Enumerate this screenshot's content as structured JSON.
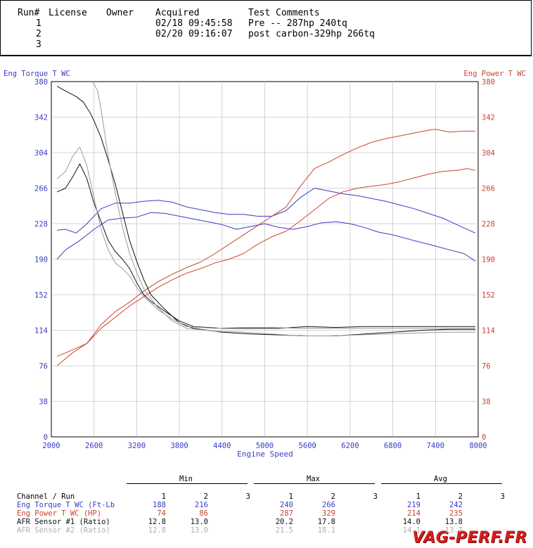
{
  "header": {
    "col_run": "Run#",
    "col_license": "License",
    "col_owner": "Owner",
    "col_acquired": "Acquired",
    "col_comments": "Test Comments",
    "runs": [
      {
        "num": "1",
        "acquired": "02/18 09:45:58",
        "comment": "Pre -- 287hp 240tq"
      },
      {
        "num": "2",
        "acquired": "02/20 09:16:07",
        "comment": "post carbon-329hp 266tq"
      },
      {
        "num": "3",
        "acquired": "",
        "comment": ""
      }
    ]
  },
  "chart_data": {
    "type": "line",
    "xlabel": "Engine Speed",
    "left_axis_label": "Eng Torque T WC",
    "right_axis_label": "Eng Power T WC",
    "xlim": [
      2000,
      8000
    ],
    "ylim": [
      0,
      380
    ],
    "x_ticks": [
      2000,
      2600,
      3200,
      3800,
      4400,
      5000,
      5600,
      6200,
      6800,
      7400,
      8000
    ],
    "y_ticks": [
      0,
      38,
      76,
      114,
      152,
      190,
      228,
      266,
      304,
      342,
      380
    ],
    "colors": {
      "torque": "#3b3bc4",
      "power": "#c8452f",
      "afr1": "#111111",
      "afr2": "#9a9a9a"
    },
    "series": [
      {
        "name": "Eng Torque T WC run 1",
        "axis": "left",
        "color": "#3b3bc4",
        "points": [
          [
            2080,
            190
          ],
          [
            2200,
            200
          ],
          [
            2400,
            210
          ],
          [
            2600,
            222
          ],
          [
            2800,
            232
          ],
          [
            3000,
            234
          ],
          [
            3200,
            235
          ],
          [
            3400,
            240
          ],
          [
            3600,
            239
          ],
          [
            3800,
            236
          ],
          [
            4000,
            233
          ],
          [
            4200,
            230
          ],
          [
            4400,
            227
          ],
          [
            4600,
            222
          ],
          [
            4800,
            225
          ],
          [
            5000,
            228
          ],
          [
            5200,
            224
          ],
          [
            5400,
            222
          ],
          [
            5600,
            225
          ],
          [
            5800,
            229
          ],
          [
            6000,
            230
          ],
          [
            6200,
            228
          ],
          [
            6400,
            224
          ],
          [
            6600,
            219
          ],
          [
            6800,
            216
          ],
          [
            7000,
            212
          ],
          [
            7200,
            208
          ],
          [
            7400,
            204
          ],
          [
            7600,
            200
          ],
          [
            7800,
            196
          ],
          [
            7960,
            188
          ]
        ]
      },
      {
        "name": "Eng Torque T WC run 2",
        "axis": "left",
        "color": "#3b3bc4",
        "points": [
          [
            2080,
            221
          ],
          [
            2200,
            222
          ],
          [
            2350,
            218
          ],
          [
            2500,
            228
          ],
          [
            2700,
            244
          ],
          [
            2900,
            250
          ],
          [
            3100,
            250
          ],
          [
            3300,
            252
          ],
          [
            3500,
            253
          ],
          [
            3700,
            251
          ],
          [
            3900,
            246
          ],
          [
            4100,
            243
          ],
          [
            4300,
            240
          ],
          [
            4500,
            238
          ],
          [
            4700,
            238
          ],
          [
            4900,
            236
          ],
          [
            5100,
            236
          ],
          [
            5300,
            242
          ],
          [
            5500,
            256
          ],
          [
            5700,
            266
          ],
          [
            5900,
            263
          ],
          [
            6100,
            260
          ],
          [
            6300,
            258
          ],
          [
            6500,
            255
          ],
          [
            6700,
            252
          ],
          [
            6900,
            248
          ],
          [
            7100,
            244
          ],
          [
            7300,
            239
          ],
          [
            7500,
            234
          ],
          [
            7700,
            227
          ],
          [
            7960,
            218
          ]
        ]
      },
      {
        "name": "Eng Power T WC run 1",
        "axis": "right",
        "color": "#c8452f",
        "points": [
          [
            2080,
            76
          ],
          [
            2300,
            90
          ],
          [
            2500,
            100
          ],
          [
            2700,
            116
          ],
          [
            2900,
            128
          ],
          [
            3100,
            140
          ],
          [
            3300,
            150
          ],
          [
            3500,
            160
          ],
          [
            3700,
            168
          ],
          [
            3900,
            175
          ],
          [
            4100,
            180
          ],
          [
            4300,
            186
          ],
          [
            4500,
            190
          ],
          [
            4700,
            196
          ],
          [
            4900,
            206
          ],
          [
            5100,
            214
          ],
          [
            5300,
            220
          ],
          [
            5500,
            231
          ],
          [
            5700,
            243
          ],
          [
            5900,
            255
          ],
          [
            6100,
            262
          ],
          [
            6300,
            266
          ],
          [
            6500,
            268
          ],
          [
            6700,
            270
          ],
          [
            6900,
            273
          ],
          [
            7100,
            277
          ],
          [
            7300,
            281
          ],
          [
            7500,
            284
          ],
          [
            7700,
            285
          ],
          [
            7850,
            287
          ],
          [
            7960,
            285
          ]
        ]
      },
      {
        "name": "Eng Power T WC run 2",
        "axis": "right",
        "color": "#c8452f",
        "points": [
          [
            2080,
            86
          ],
          [
            2300,
            93
          ],
          [
            2500,
            100
          ],
          [
            2700,
            120
          ],
          [
            2900,
            134
          ],
          [
            3100,
            144
          ],
          [
            3300,
            156
          ],
          [
            3500,
            166
          ],
          [
            3700,
            174
          ],
          [
            3900,
            181
          ],
          [
            4100,
            187
          ],
          [
            4300,
            196
          ],
          [
            4500,
            206
          ],
          [
            4700,
            216
          ],
          [
            4900,
            226
          ],
          [
            5100,
            236
          ],
          [
            5300,
            246
          ],
          [
            5500,
            268
          ],
          [
            5700,
            287
          ],
          [
            5900,
            294
          ],
          [
            6100,
            302
          ],
          [
            6300,
            309
          ],
          [
            6500,
            315
          ],
          [
            6700,
            319
          ],
          [
            6900,
            322
          ],
          [
            7100,
            325
          ],
          [
            7300,
            328
          ],
          [
            7400,
            329
          ],
          [
            7600,
            326
          ],
          [
            7800,
            327
          ],
          [
            7960,
            327
          ]
        ]
      },
      {
        "name": "AFR Sensor #1 run 1",
        "axis": "left",
        "color": "#111111",
        "points": [
          [
            2080,
            262
          ],
          [
            2200,
            266
          ],
          [
            2300,
            278
          ],
          [
            2400,
            292
          ],
          [
            2500,
            276
          ],
          [
            2600,
            250
          ],
          [
            2700,
            230
          ],
          [
            2800,
            210
          ],
          [
            2900,
            198
          ],
          [
            3000,
            190
          ],
          [
            3100,
            180
          ],
          [
            3200,
            165
          ],
          [
            3300,
            152
          ],
          [
            3400,
            145
          ],
          [
            3600,
            134
          ],
          [
            3800,
            124
          ],
          [
            4000,
            118
          ],
          [
            4400,
            116
          ],
          [
            4800,
            116
          ],
          [
            5200,
            116
          ],
          [
            5600,
            118
          ],
          [
            6000,
            117
          ],
          [
            6400,
            118
          ],
          [
            6800,
            118
          ],
          [
            7200,
            118
          ],
          [
            7600,
            118
          ],
          [
            7960,
            118
          ]
        ]
      },
      {
        "name": "AFR Sensor #1 run 2",
        "axis": "left",
        "color": "#111111",
        "points": [
          [
            2080,
            375
          ],
          [
            2150,
            372
          ],
          [
            2250,
            368
          ],
          [
            2350,
            364
          ],
          [
            2450,
            358
          ],
          [
            2550,
            346
          ],
          [
            2600,
            338
          ],
          [
            2700,
            320
          ],
          [
            2800,
            296
          ],
          [
            2900,
            270
          ],
          [
            3000,
            240
          ],
          [
            3100,
            210
          ],
          [
            3200,
            188
          ],
          [
            3300,
            168
          ],
          [
            3400,
            152
          ],
          [
            3600,
            136
          ],
          [
            3800,
            122
          ],
          [
            4000,
            116
          ],
          [
            4400,
            112
          ],
          [
            4800,
            110
          ],
          [
            5200,
            109
          ],
          [
            5600,
            108
          ],
          [
            6000,
            108
          ],
          [
            6400,
            110
          ],
          [
            6800,
            112
          ],
          [
            7200,
            114
          ],
          [
            7600,
            115
          ],
          [
            7960,
            115
          ]
        ]
      },
      {
        "name": "AFR Sensor #2 run 1",
        "axis": "left",
        "color": "#9a9a9a",
        "points": [
          [
            2080,
            276
          ],
          [
            2200,
            284
          ],
          [
            2300,
            300
          ],
          [
            2400,
            310
          ],
          [
            2500,
            290
          ],
          [
            2600,
            256
          ],
          [
            2700,
            222
          ],
          [
            2800,
            200
          ],
          [
            2900,
            186
          ],
          [
            3000,
            180
          ],
          [
            3100,
            172
          ],
          [
            3200,
            160
          ],
          [
            3300,
            150
          ],
          [
            3500,
            136
          ],
          [
            3700,
            126
          ],
          [
            3900,
            118
          ],
          [
            4300,
            116
          ],
          [
            4700,
            117
          ],
          [
            5100,
            117
          ],
          [
            5500,
            116
          ],
          [
            5900,
            116
          ],
          [
            6300,
            116
          ],
          [
            6700,
            116
          ],
          [
            7100,
            116
          ],
          [
            7500,
            116
          ],
          [
            7960,
            116
          ]
        ]
      },
      {
        "name": "AFR Sensor #2 run 2",
        "axis": "left",
        "color": "#9a9a9a",
        "points": [
          [
            2580,
            380
          ],
          [
            2650,
            370
          ],
          [
            2700,
            350
          ],
          [
            2800,
            300
          ],
          [
            2900,
            260
          ],
          [
            3000,
            224
          ],
          [
            3100,
            196
          ],
          [
            3200,
            176
          ],
          [
            3300,
            158
          ],
          [
            3500,
            138
          ],
          [
            3700,
            124
          ],
          [
            3900,
            116
          ],
          [
            4300,
            113
          ],
          [
            4700,
            112
          ],
          [
            5100,
            110
          ],
          [
            5500,
            108
          ],
          [
            5900,
            108
          ],
          [
            6300,
            109
          ],
          [
            6700,
            110
          ],
          [
            7100,
            111
          ],
          [
            7500,
            112
          ],
          [
            7960,
            112
          ]
        ]
      }
    ]
  },
  "stats": {
    "groups": [
      "Min",
      "Max",
      "Avg"
    ],
    "run_headers": [
      "1",
      "2",
      "3"
    ],
    "channel_header": "Channel / Run",
    "rows": [
      {
        "label": "Eng Torque T WC (Ft-Lb",
        "color": "#3b3bc4",
        "min": [
          "188",
          "216",
          ""
        ],
        "max": [
          "240",
          "266",
          ""
        ],
        "avg": [
          "219",
          "242",
          ""
        ]
      },
      {
        "label": "Eng Power T WC (HP)",
        "color": "#c8452f",
        "min": [
          "74",
          "86",
          ""
        ],
        "max": [
          "287",
          "329",
          ""
        ],
        "avg": [
          "214",
          "235",
          ""
        ]
      },
      {
        "label": "AFR Sensor #1 (Ratio)",
        "color": "#111111",
        "min": [
          "12.8",
          "13.0",
          ""
        ],
        "max": [
          "20.2",
          "17.8",
          ""
        ],
        "avg": [
          "14.0",
          "13.8",
          ""
        ]
      },
      {
        "label": "AFR Sensor #2 (Ratio)",
        "color": "#b0b0b0",
        "min": [
          "12.8",
          "13.0",
          ""
        ],
        "max": [
          "21.5",
          "18.1",
          ""
        ],
        "avg": [
          "14.1",
          "13.7",
          ""
        ]
      }
    ]
  },
  "watermark": "VAG-PERF.FR"
}
